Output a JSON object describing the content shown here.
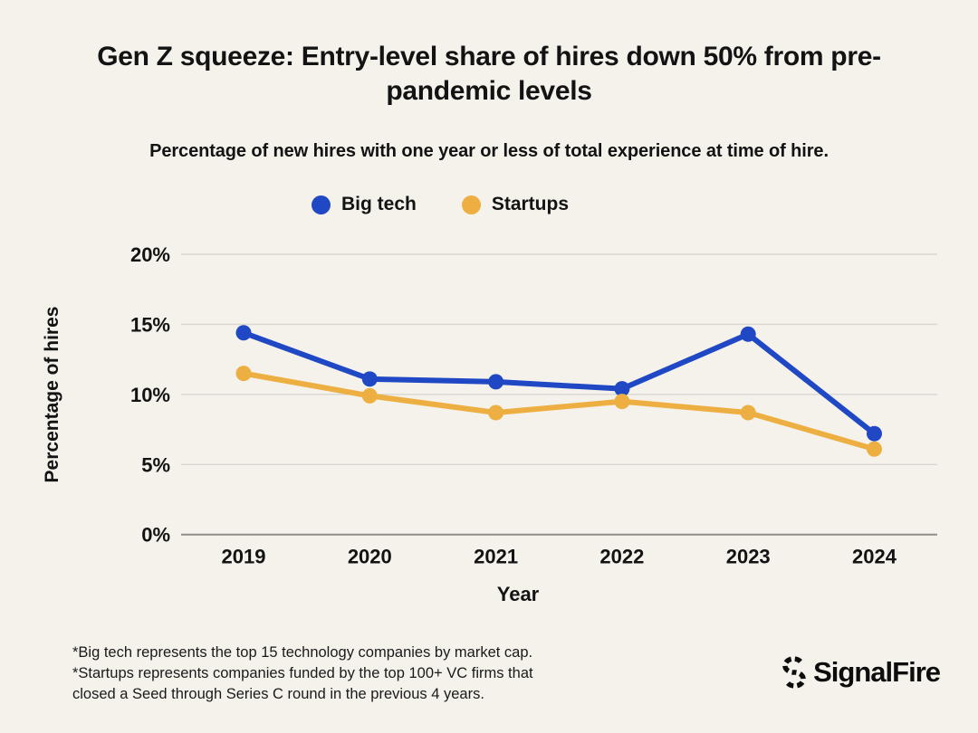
{
  "title": "Gen Z squeeze: Entry-level share of hires down 50% from pre-pandemic levels",
  "subtitle": "Percentage of new hires with one year or less of total experience at time of hire.",
  "legend": {
    "big_tech_label": "Big tech",
    "startups_label": "Startups"
  },
  "colors": {
    "background": "#f5f2ec",
    "text": "#131313",
    "big_tech": "#2148c4",
    "startups": "#edaf41",
    "gridline": "#d9d6d0",
    "axis_line": "#8f8d88"
  },
  "chart_data": {
    "type": "line",
    "title": "Gen Z squeeze: Entry-level share of hires down 50% from pre-pandemic levels",
    "subtitle": "Percentage of new hires with one year or less of total experience at time of hire.",
    "x": [
      "2019",
      "2020",
      "2021",
      "2022",
      "2023",
      "2024"
    ],
    "series": [
      {
        "name": "Big tech",
        "color": "#2148c4",
        "values": [
          14.4,
          11.1,
          10.9,
          10.4,
          14.3,
          7.2
        ]
      },
      {
        "name": "Startups",
        "color": "#edaf41",
        "values": [
          11.5,
          9.9,
          8.7,
          9.5,
          8.7,
          6.1
        ]
      }
    ],
    "xlabel": "Year",
    "ylabel": "Percentage of hires",
    "ylim": [
      0,
      20
    ],
    "yticks": [
      0,
      5,
      10,
      15,
      20
    ],
    "ytick_suffix": "%",
    "grid": true,
    "legend_position": "top-center",
    "marker": "circle"
  },
  "footnote": {
    "line1": "*Big tech represents the top 15 technology companies by market cap.",
    "line2": "*Startups represents companies funded by the top 100+ VC firms that",
    "line3": "closed a Seed through Series C round in the previous 4 years."
  },
  "logo": {
    "text": "SignalFire"
  }
}
